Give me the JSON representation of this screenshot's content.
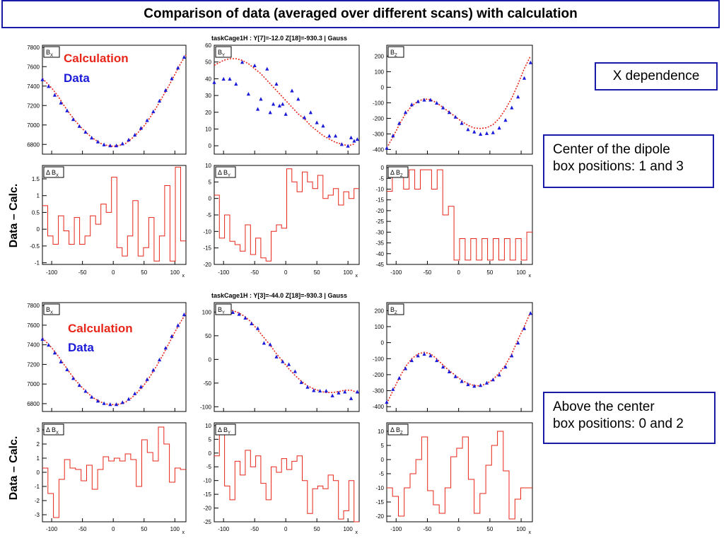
{
  "title": "Comparison of data (averaged over different scans) with calculation",
  "callouts": {
    "x_dependence": "X dependence",
    "center_line1": "Center of the dipole",
    "center_line2": "box positions: 1 and 3",
    "above_line1": "Above the center",
    "above_line2": "box positions: 0 and 2"
  },
  "colors": {
    "calc": "#e8261a",
    "data": "#1a1ad8",
    "frame": "#1a1aa8"
  },
  "chart_data": [
    {
      "type": "scatter",
      "title": "taskCage1H : Y[7]=-12.0    Z[18]=-930.3  |  Gauss",
      "legend": {
        "calc": "Calculation",
        "data": "Data",
        "placement": "top-right"
      },
      "ydiff_label": "Data – Calc.",
      "panels": [
        {
          "label": "B",
          "sub": "X",
          "xlim": [
            -115,
            118
          ],
          "ylim": [
            6700,
            7820
          ],
          "yticks": [
            6800,
            7000,
            7200,
            7400,
            7600,
            7800
          ],
          "calc_x": [
            -115,
            -100,
            -90,
            -80,
            -70,
            -60,
            -50,
            -40,
            -30,
            -20,
            -10,
            0,
            10,
            20,
            30,
            40,
            50,
            60,
            70,
            80,
            90,
            100,
            110,
            118
          ],
          "calc_y": [
            7480,
            7380,
            7300,
            7200,
            7110,
            7030,
            6960,
            6900,
            6850,
            6810,
            6790,
            6780,
            6790,
            6810,
            6860,
            6920,
            6990,
            7080,
            7180,
            7290,
            7400,
            7520,
            7640,
            7720
          ],
          "data_x": [
            -115,
            -105,
            -95,
            -85,
            -75,
            -65,
            -55,
            -45,
            -35,
            -25,
            -15,
            -5,
            5,
            15,
            25,
            35,
            45,
            55,
            65,
            75,
            85,
            95,
            105,
            115
          ],
          "data_y": [
            7470,
            7400,
            7310,
            7230,
            7150,
            7060,
            6990,
            6930,
            6870,
            6830,
            6800,
            6790,
            6790,
            6810,
            6850,
            6900,
            6970,
            7050,
            7140,
            7250,
            7360,
            7480,
            7590,
            7700
          ]
        },
        {
          "label": "B",
          "sub": "Y",
          "xlim": [
            -115,
            118
          ],
          "ylim": [
            -5,
            60
          ],
          "yticks": [
            0,
            10,
            20,
            30,
            40,
            50,
            60
          ],
          "calc_x": [
            -115,
            -100,
            -90,
            -80,
            -70,
            -60,
            -50,
            -40,
            -30,
            -20,
            -10,
            0,
            10,
            20,
            30,
            40,
            50,
            60,
            70,
            80,
            90,
            100,
            110
          ],
          "calc_y": [
            48,
            51,
            52,
            52,
            51,
            49,
            46,
            43,
            39,
            35,
            31,
            27,
            23,
            19,
            16,
            12,
            9,
            6,
            4,
            2,
            1,
            0,
            1
          ],
          "data_x": [
            -115,
            -100,
            -90,
            -80,
            -70,
            -60,
            -50,
            -45,
            -40,
            -30,
            -25,
            -20,
            -15,
            -10,
            -5,
            0,
            10,
            20,
            30,
            40,
            50,
            60,
            70,
            80,
            90,
            100,
            105,
            110,
            115
          ],
          "data_y": [
            38,
            40,
            40,
            37,
            50,
            31,
            48,
            22,
            28,
            46,
            20,
            25,
            37,
            24,
            25,
            19,
            33,
            28,
            17,
            20,
            14,
            12,
            6,
            6,
            1,
            0,
            5,
            3,
            4
          ]
        },
        {
          "label": "B",
          "sub": "Z",
          "xlim": [
            -115,
            118
          ],
          "ylim": [
            -430,
            270
          ],
          "yticks": [
            -400,
            -300,
            -200,
            -100,
            0,
            100,
            200
          ],
          "calc_x": [
            -115,
            -105,
            -95,
            -85,
            -75,
            -65,
            -55,
            -45,
            -35,
            -25,
            -15,
            -5,
            5,
            15,
            25,
            35,
            45,
            55,
            65,
            75,
            85,
            95,
            105,
            115
          ],
          "calc_y": [
            -390,
            -320,
            -240,
            -170,
            -120,
            -90,
            -75,
            -80,
            -100,
            -130,
            -160,
            -190,
            -220,
            -245,
            -262,
            -265,
            -260,
            -240,
            -200,
            -140,
            -70,
            20,
            120,
            200
          ],
          "data_x": [
            -115,
            -105,
            -95,
            -85,
            -75,
            -65,
            -55,
            -45,
            -35,
            -25,
            -15,
            -5,
            5,
            15,
            25,
            35,
            45,
            55,
            65,
            75,
            85,
            95,
            105,
            115
          ],
          "data_y": [
            -390,
            -310,
            -230,
            -160,
            -110,
            -90,
            -80,
            -80,
            -100,
            -130,
            -160,
            -190,
            -230,
            -270,
            -285,
            -300,
            -295,
            -290,
            -260,
            -210,
            -130,
            -60,
            60,
            160
          ]
        }
      ],
      "diffs": [
        {
          "label": "Δ B",
          "sub": "X",
          "xlim": [
            -115,
            118
          ],
          "ylim": [
            -1.05,
            1.9
          ],
          "yticks": [
            -1.0,
            -0.5,
            0.0,
            0.5,
            1.0,
            1.5
          ],
          "values": [
            0.7,
            -0.2,
            -0.45,
            0.4,
            -0.05,
            -0.45,
            0.35,
            -0.45,
            -0.2,
            0.4,
            0.15,
            0.75,
            0.5,
            1.55,
            -0.55,
            -0.8,
            -0.2,
            0.85,
            -0.8,
            -0.55,
            0.35,
            -0.95,
            -0.2,
            1.3,
            -0.95,
            1.85,
            -0.35
          ]
        },
        {
          "label": "Δ B",
          "sub": "Y",
          "xlim": [
            -115,
            118
          ],
          "ylim": [
            -20,
            10
          ],
          "yticks": [
            -20,
            -15,
            -10,
            -5,
            0,
            5,
            10
          ],
          "values": [
            1,
            -12,
            -5,
            -13,
            -14,
            -16,
            -8,
            -17,
            -12,
            -18,
            -19,
            -10,
            -8,
            -9,
            9,
            5,
            2,
            8,
            5,
            3,
            7,
            0,
            1,
            3,
            -2,
            2,
            0,
            3
          ]
        },
        {
          "label": "Δ B",
          "sub": "Z",
          "xlim": [
            -115,
            118
          ],
          "ylim": [
            -45,
            1
          ],
          "yticks": [
            -45,
            -40,
            -35,
            -30,
            -25,
            -20,
            -15,
            -10,
            -5,
            0
          ],
          "values": [
            -11,
            -1,
            -1,
            -10,
            -1,
            -10,
            -1,
            -1,
            -10,
            -1,
            -22,
            -18,
            -43,
            -33,
            -43,
            -33,
            -43,
            -33,
            -43,
            -33,
            -43,
            -33,
            -43,
            -33,
            -43,
            -30
          ]
        }
      ]
    },
    {
      "type": "scatter",
      "title": "taskCage1H : Y[3]=-44.0    Z[18]=-930.3  |  Gauss",
      "legend": {
        "calc": "Calculation",
        "data": "Data",
        "placement": "top-right"
      },
      "ydiff_label": "Data – Calc.",
      "panels": [
        {
          "label": "B",
          "sub": "X",
          "xlim": [
            -115,
            118
          ],
          "ylim": [
            6720,
            7830
          ],
          "yticks": [
            6800,
            7000,
            7200,
            7400,
            7600,
            7800
          ],
          "calc_x": [
            -115,
            -100,
            -90,
            -80,
            -70,
            -60,
            -50,
            -40,
            -30,
            -20,
            -10,
            0,
            10,
            20,
            30,
            40,
            50,
            60,
            70,
            80,
            90,
            100,
            110,
            118
          ],
          "calc_y": [
            7470,
            7370,
            7290,
            7200,
            7110,
            7030,
            6960,
            6900,
            6850,
            6815,
            6795,
            6790,
            6795,
            6815,
            6860,
            6920,
            6990,
            7080,
            7180,
            7290,
            7410,
            7530,
            7640,
            7720
          ],
          "data_x": [
            -115,
            -105,
            -95,
            -85,
            -75,
            -65,
            -55,
            -45,
            -35,
            -25,
            -15,
            -5,
            5,
            15,
            25,
            35,
            45,
            55,
            65,
            75,
            85,
            95,
            105,
            115
          ],
          "data_y": [
            7460,
            7400,
            7320,
            7230,
            7150,
            7060,
            6990,
            6930,
            6870,
            6830,
            6805,
            6795,
            6795,
            6815,
            6850,
            6905,
            6975,
            7050,
            7145,
            7250,
            7370,
            7490,
            7600,
            7710
          ]
        },
        {
          "label": "B",
          "sub": "Y",
          "xlim": [
            -115,
            118
          ],
          "ylim": [
            -110,
            120
          ],
          "yticks": [
            -100,
            -50,
            0,
            50,
            100
          ],
          "calc_x": [
            -95,
            -85,
            -75,
            -65,
            -55,
            -45,
            -35,
            -25,
            -15,
            -5,
            5,
            15,
            25,
            35,
            45,
            55,
            65,
            75,
            85,
            95,
            105,
            115
          ],
          "calc_y": [
            108,
            103,
            98,
            90,
            78,
            62,
            46,
            30,
            12,
            -4,
            -20,
            -34,
            -46,
            -56,
            -62,
            -67,
            -70,
            -70,
            -68,
            -65,
            -65,
            -70
          ],
          "data_x": [
            -95,
            -85,
            -75,
            -65,
            -55,
            -45,
            -35,
            -25,
            -15,
            -5,
            5,
            15,
            25,
            35,
            45,
            55,
            65,
            75,
            85,
            95,
            105,
            115
          ],
          "data_y": [
            106,
            100,
            96,
            88,
            76,
            66,
            35,
            32,
            6,
            -4,
            -10,
            -25,
            -48,
            -58,
            -65,
            -66,
            -66,
            -76,
            -70,
            -68,
            -82,
            -68
          ]
        },
        {
          "label": "B",
          "sub": "Z",
          "xlim": [
            -115,
            118
          ],
          "ylim": [
            -430,
            250
          ],
          "yticks": [
            -400,
            -300,
            -200,
            -100,
            0,
            100,
            200
          ],
          "calc_x": [
            -115,
            -105,
            -95,
            -85,
            -75,
            -65,
            -55,
            -45,
            -35,
            -25,
            -15,
            -5,
            5,
            15,
            25,
            35,
            45,
            55,
            65,
            75,
            85,
            95,
            105,
            115
          ],
          "calc_y": [
            -380,
            -300,
            -220,
            -150,
            -100,
            -70,
            -60,
            -70,
            -100,
            -140,
            -175,
            -205,
            -235,
            -255,
            -268,
            -270,
            -255,
            -230,
            -190,
            -140,
            -70,
            20,
            100,
            190
          ],
          "data_x": [
            -115,
            -105,
            -95,
            -85,
            -75,
            -65,
            -55,
            -45,
            -35,
            -25,
            -15,
            -5,
            5,
            15,
            25,
            35,
            45,
            55,
            65,
            75,
            85,
            95,
            105,
            115
          ],
          "data_y": [
            -370,
            -290,
            -220,
            -160,
            -110,
            -80,
            -70,
            -80,
            -110,
            -150,
            -180,
            -210,
            -240,
            -260,
            -270,
            -265,
            -250,
            -230,
            -200,
            -150,
            -80,
            0,
            90,
            185
          ]
        }
      ],
      "diffs": [
        {
          "label": "Δ B",
          "sub": "X",
          "xlim": [
            -115,
            118
          ],
          "ylim": [
            -3.5,
            3.5
          ],
          "yticks": [
            -3,
            -2,
            -1,
            0,
            1,
            2,
            3
          ],
          "values": [
            0.3,
            -1.5,
            -3.2,
            -0.5,
            0.9,
            0.3,
            0.2,
            -0.6,
            0.5,
            -1.2,
            0.2,
            1.1,
            0.8,
            1.0,
            0.8,
            1.3,
            0.9,
            -1.0,
            2.3,
            1.4,
            0.8,
            3.2,
            2.0,
            -0.7,
            0.3,
            0.2
          ]
        },
        {
          "label": "Δ B",
          "sub": "Y",
          "xlim": [
            -115,
            118
          ],
          "ylim": [
            -25,
            11
          ],
          "yticks": [
            -25,
            -20,
            -15,
            -10,
            -5,
            0,
            5,
            10
          ],
          "values": [
            -1,
            9,
            -12,
            -17,
            -3,
            -8,
            1,
            -5,
            -1,
            -11,
            -17,
            -5,
            -7,
            -2,
            -6,
            -3,
            -1,
            -10,
            -22,
            -13,
            -12,
            -13,
            -8,
            -10,
            -24,
            -21,
            -10,
            -25
          ]
        },
        {
          "label": "Δ B",
          "sub": "Z",
          "xlim": [
            -115,
            118
          ],
          "ylim": [
            -22,
            13
          ],
          "yticks": [
            -20,
            -15,
            -10,
            -5,
            0,
            5,
            10
          ],
          "values": [
            -10,
            -13,
            -20,
            -10,
            -5,
            0,
            8,
            -11,
            -16,
            -19,
            -10,
            1,
            4,
            8,
            -7,
            -19,
            -12,
            -2,
            5,
            10,
            -4,
            -21,
            -14,
            -10,
            -10
          ]
        }
      ]
    }
  ]
}
